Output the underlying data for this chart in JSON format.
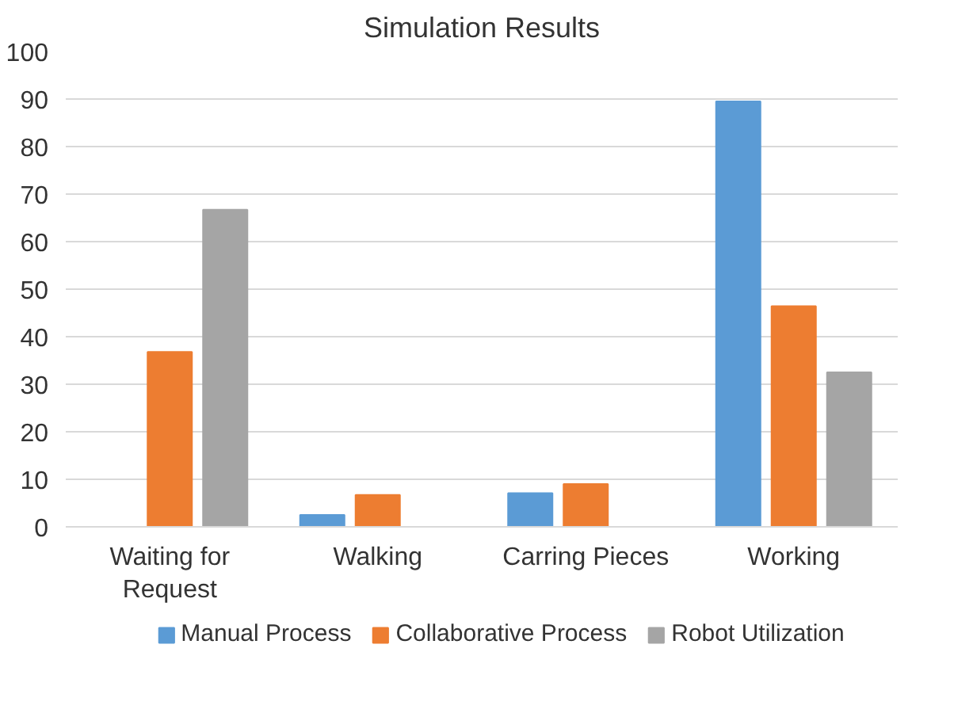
{
  "chart_data": {
    "type": "bar",
    "title": "Simulation Results",
    "categories": [
      "Waiting for Request",
      "Walking",
      "Carring Pieces",
      "Working"
    ],
    "series": [
      {
        "name": "Manual Process",
        "color": "#5b9bd5",
        "values": [
          0,
          2.5,
          7.1,
          89.5
        ]
      },
      {
        "name": "Collaborative Process",
        "color": "#ed7d31",
        "values": [
          36.8,
          6.7,
          9.0,
          46.4
        ]
      },
      {
        "name": "Robot Utilization",
        "color": "#a5a5a5",
        "values": [
          66.7,
          0,
          0,
          32.5
        ]
      }
    ],
    "ylim": [
      0,
      100
    ],
    "yticks": [
      0,
      10,
      20,
      30,
      40,
      50,
      60,
      70,
      80,
      90,
      100
    ],
    "grid": "y",
    "legend": "bottom"
  }
}
